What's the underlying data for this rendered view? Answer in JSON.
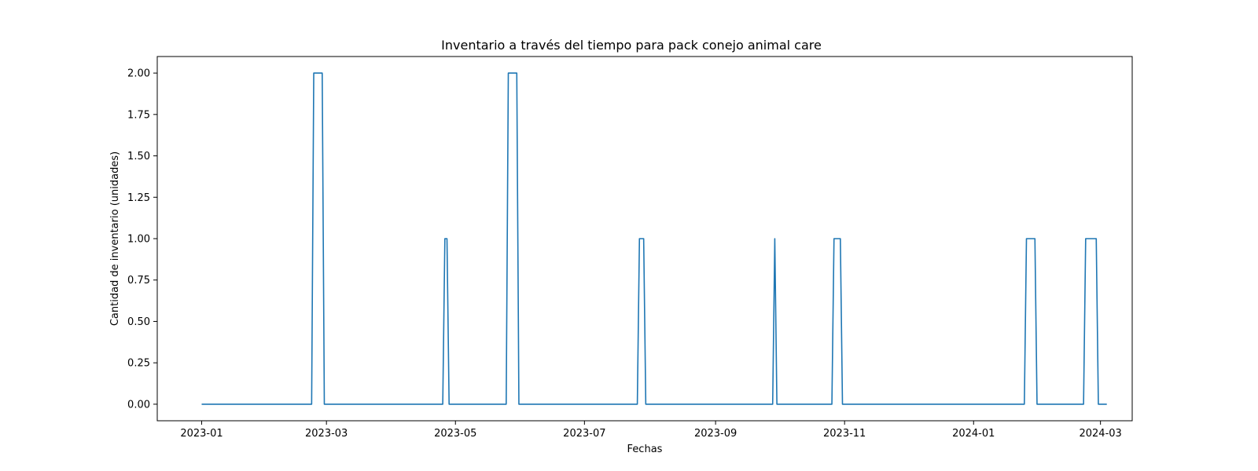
{
  "chart_data": {
    "type": "line",
    "title": "Inventario a través del tiempo para pack conejo animal care",
    "xlabel": "Fechas",
    "ylabel": "Cantidad de inventario (unidades)",
    "xlim": [
      "2022-12-11",
      "2024-03-16"
    ],
    "ylim": [
      -0.1,
      2.1
    ],
    "x_ticks": [
      "2023-01",
      "2023-03",
      "2023-05",
      "2023-07",
      "2023-09",
      "2023-11",
      "2024-01",
      "2024-03"
    ],
    "x_tick_dates": [
      "2023-01-01",
      "2023-03-01",
      "2023-05-01",
      "2023-07-01",
      "2023-09-01",
      "2023-11-01",
      "2024-01-01",
      "2024-03-01"
    ],
    "y_ticks": [
      "0.00",
      "0.25",
      "0.50",
      "0.75",
      "1.00",
      "1.25",
      "1.50",
      "1.75",
      "2.00"
    ],
    "grid": false,
    "color": "#1f77b4",
    "series": [
      {
        "x": [
          "2023-01-01",
          "2023-02-22",
          "2023-02-23",
          "2023-02-27",
          "2023-02-28",
          "2023-04-25",
          "2023-04-26",
          "2023-04-27",
          "2023-04-28",
          "2023-05-25",
          "2023-05-26",
          "2023-05-30",
          "2023-05-31",
          "2023-07-26",
          "2023-07-27",
          "2023-07-29",
          "2023-07-30",
          "2023-09-28",
          "2023-09-29",
          "2023-09-30",
          "2023-10-26",
          "2023-10-27",
          "2023-10-30",
          "2023-10-31",
          "2024-01-25",
          "2024-01-26",
          "2024-01-30",
          "2024-01-31",
          "2024-02-22",
          "2024-02-23",
          "2024-02-28",
          "2024-02-29",
          "2024-03-04"
        ],
        "y": [
          0,
          0,
          2,
          2,
          0,
          0,
          1,
          1,
          0,
          0,
          2,
          2,
          0,
          0,
          1,
          1,
          0,
          0,
          1,
          0,
          0,
          1,
          1,
          0,
          0,
          1,
          1,
          0,
          0,
          1,
          1,
          0,
          0
        ]
      }
    ]
  }
}
